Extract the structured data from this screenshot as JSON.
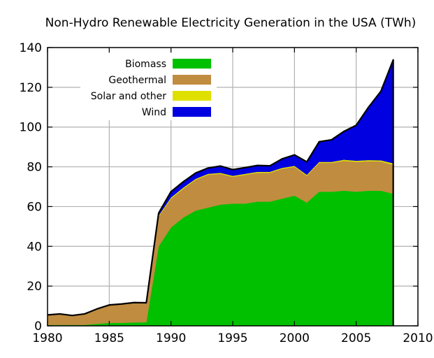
{
  "chart_data": {
    "type": "area",
    "stacked": true,
    "title": "Non-Hydro Renewable Electricity Generation in the USA (TWh)",
    "xlabel": "",
    "ylabel": "",
    "xlim": [
      1980,
      2010
    ],
    "ylim": [
      0,
      140
    ],
    "xticks": [
      1980,
      1985,
      1990,
      1995,
      2000,
      2005,
      2010
    ],
    "yticks": [
      0,
      20,
      40,
      60,
      80,
      100,
      120,
      140
    ],
    "grid": true,
    "legend_position": "top-left",
    "x": [
      1980,
      1981,
      1982,
      1983,
      1984,
      1985,
      1986,
      1987,
      1988,
      1989,
      1990,
      1991,
      1992,
      1993,
      1994,
      1995,
      1996,
      1997,
      1998,
      1999,
      2000,
      2001,
      2002,
      2003,
      2004,
      2005,
      2006,
      2007,
      2008
    ],
    "series": [
      {
        "name": "Biomass",
        "color": "#00c000",
        "values": [
          0.5,
          0.5,
          0.5,
          0.5,
          1.0,
          1.5,
          1.5,
          1.7,
          1.8,
          40,
          49.5,
          54.5,
          58,
          59.5,
          61,
          61.5,
          61.5,
          62.5,
          62.5,
          64,
          65.5,
          62,
          67.5,
          67.5,
          68,
          67.5,
          68,
          68,
          66.5
        ]
      },
      {
        "name": "Geothermal",
        "color": "#c08c40",
        "values": [
          5,
          5.5,
          4.7,
          5.5,
          7.5,
          9,
          9.5,
          10,
          9.8,
          15,
          14.5,
          14.5,
          15.5,
          16.5,
          15.5,
          13.5,
          14.5,
          14.5,
          14.5,
          15,
          14.5,
          13.5,
          14.5,
          14.5,
          15,
          15,
          14.8,
          14.7,
          14.5
        ]
      },
      {
        "name": "Solar and other",
        "color": "#e0e000",
        "values": [
          0,
          0,
          0,
          0,
          0,
          0,
          0,
          0,
          0,
          0.5,
          0.6,
          0.6,
          0.5,
          0.5,
          0.5,
          0.5,
          0.5,
          0.5,
          0.5,
          0.5,
          0.5,
          0.5,
          0.5,
          0.5,
          0.6,
          0.6,
          0.6,
          0.6,
          0.8
        ]
      },
      {
        "name": "Wind",
        "color": "#0000e0",
        "values": [
          0,
          0,
          0,
          0,
          0,
          0,
          0,
          0,
          0,
          1.2,
          2.9,
          2.9,
          2.9,
          2.9,
          3.4,
          3.1,
          3.1,
          3.2,
          3.0,
          4.5,
          5.5,
          6.5,
          10.1,
          11.1,
          14.2,
          17.8,
          26.6,
          34.7,
          52.0
        ]
      }
    ]
  }
}
